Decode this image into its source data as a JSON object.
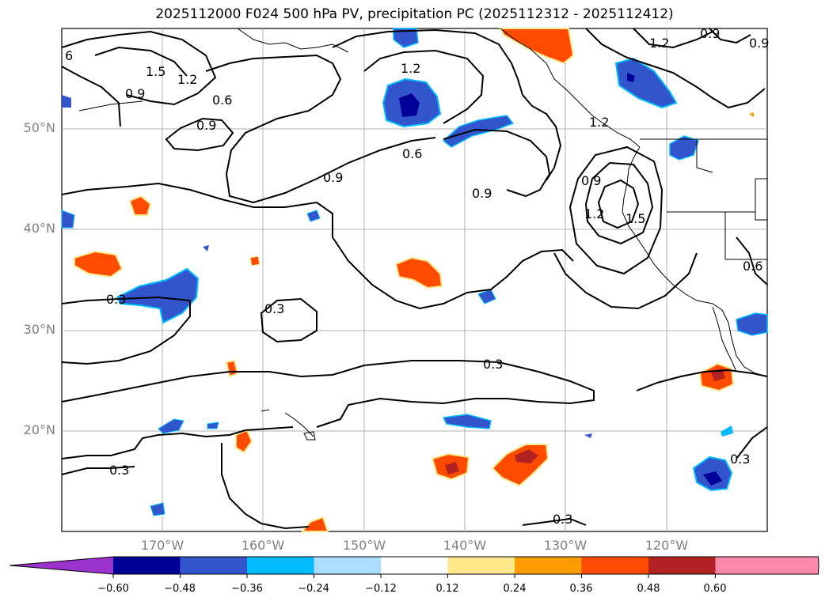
{
  "title": "2025112000 F024 500 hPa PV, precipitation PC (2025112312 - 2025112412)",
  "map": {
    "lat_labels": [
      "50°N",
      "40°N",
      "30°N",
      "20°N"
    ],
    "lon_labels": [
      "170°W",
      "160°W",
      "150°W",
      "140°W",
      "130°W",
      "120°W"
    ],
    "contour_labels": [
      "6",
      "1.5",
      "1.2",
      "0.9",
      "0.9",
      "0.6",
      "1.2",
      "0.6",
      "0.9",
      "1.2",
      "0.9",
      "0.9",
      "1.2",
      "1.5",
      "0.6",
      "0.3",
      "0.3",
      "0.3",
      "0.3",
      "0.3",
      "0.3",
      "0.9",
      "1.2",
      "0.9"
    ]
  },
  "colorbar": {
    "ticks": [
      "−0.60",
      "−0.48",
      "−0.36",
      "−0.24",
      "−0.12",
      "0.12",
      "0.24",
      "0.36",
      "0.48",
      "0.60"
    ],
    "colors": [
      "#9933cc",
      "#000099",
      "#3355cc",
      "#00bbff",
      "#aaddff",
      "#ffffff",
      "#ffe88a",
      "#ff9d00",
      "#ff4b00",
      "#b22222",
      "#ff88aa",
      "#ff88aa"
    ]
  },
  "colors": {
    "neg_dark": "#000099",
    "neg_mid": "#3355cc",
    "neg_light": "#00bbff",
    "pos_light": "#ffe88a",
    "pos_mid": "#ff9d00",
    "pos_strong": "#ff4b00",
    "pos_dark": "#b22222"
  }
}
